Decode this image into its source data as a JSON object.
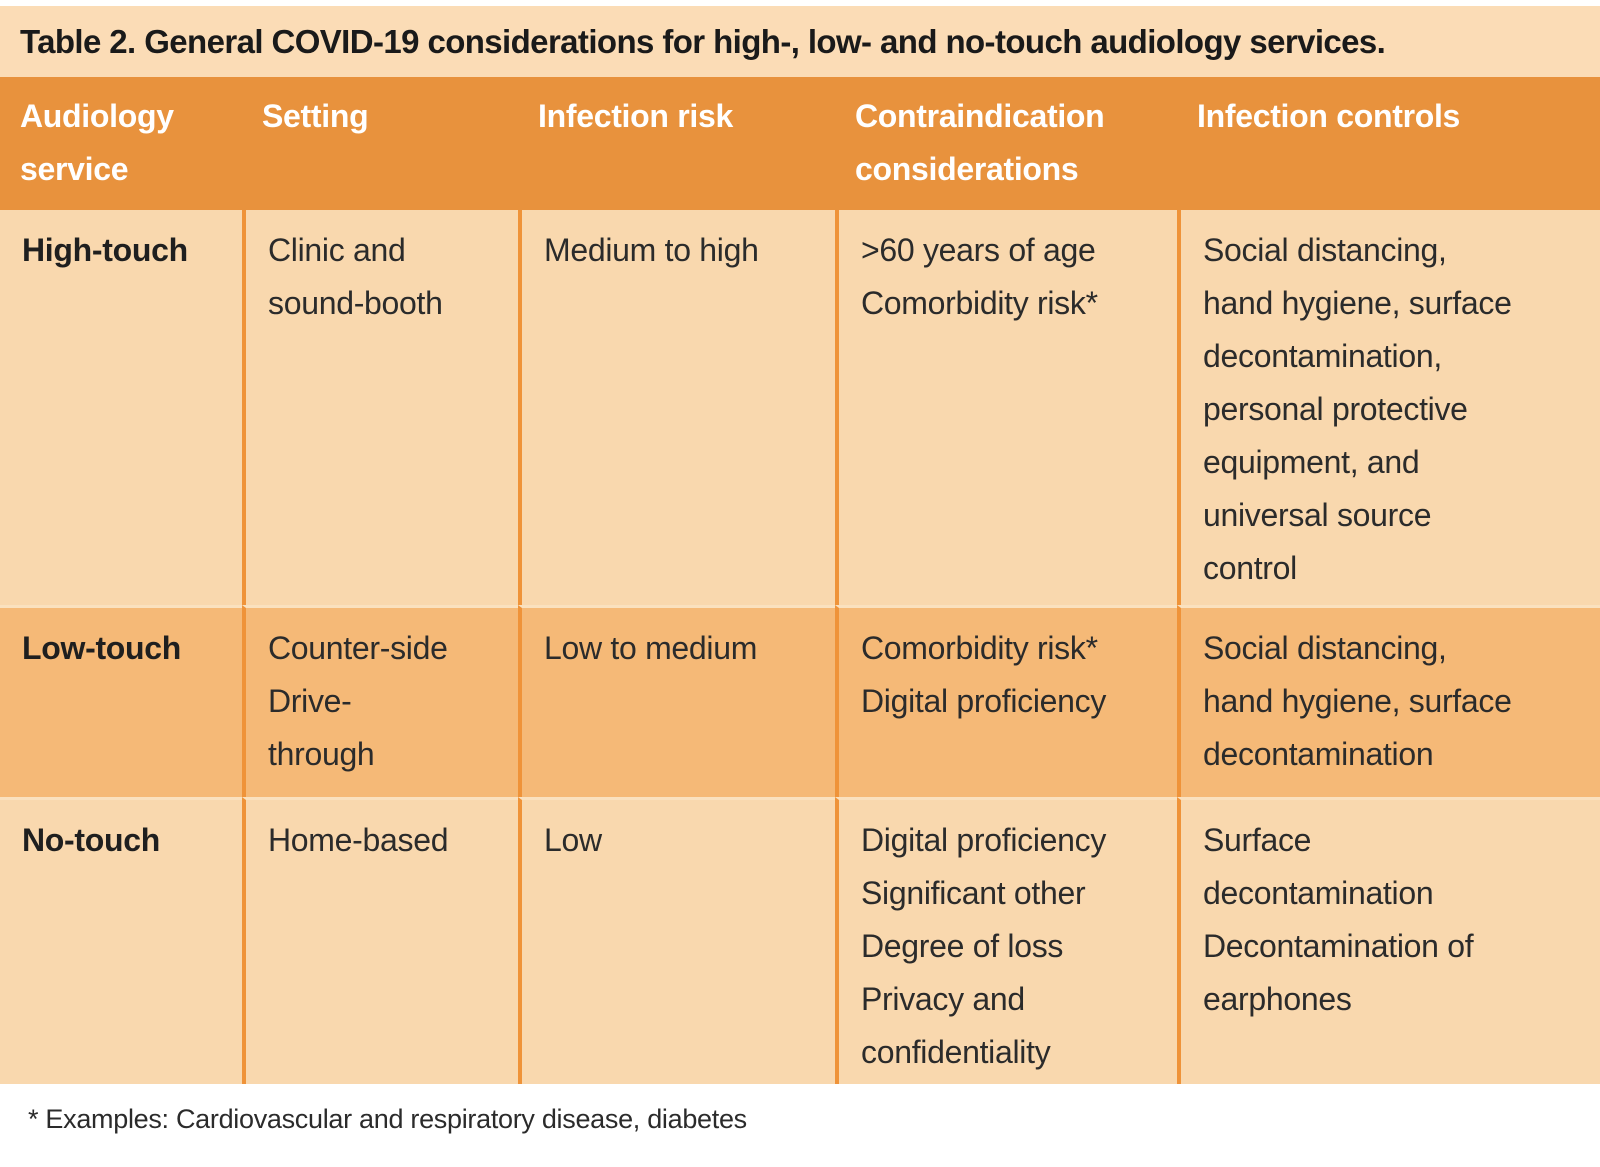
{
  "title": "Table 2. General COVID-19 considerations for high-, low- and no-touch audiology services.",
  "colors": {
    "title_bg": "#FBDCB6",
    "header_bg": "#E8923D",
    "row_light_bg": "#F9D8AE",
    "row_dark_bg": "#F5B977",
    "divider": "#EF9339",
    "row_sep": "#FAE1BF",
    "header_text": "#FFFFFF",
    "body_text": "#2B2B2B",
    "title_text": "#1A1A1A"
  },
  "header": {
    "columns": [
      "Audiology service",
      "Setting",
      "Infection risk",
      "Contraindication considerations",
      "Infection controls"
    ]
  },
  "rows": [
    {
      "service": "High-touch",
      "setting": [
        "Clinic and",
        "sound-booth"
      ],
      "infection_risk": [
        "Medium to high"
      ],
      "contraindications": [
        ">60 years of age",
        "Comorbidity risk*"
      ],
      "infection_controls": [
        "Social distancing,",
        "hand hygiene, surface",
        "decontamination,",
        "personal protective",
        "equipment, and",
        "universal source",
        "control"
      ]
    },
    {
      "service": "Low-touch",
      "setting": [
        "Counter-side",
        "Drive-",
        "through"
      ],
      "infection_risk": [
        "Low to medium"
      ],
      "contraindications": [
        "Comorbidity risk*",
        "Digital proficiency"
      ],
      "infection_controls": [
        "Social distancing,",
        "hand hygiene, surface",
        "decontamination"
      ]
    },
    {
      "service": "No-touch",
      "setting": [
        "Home-based"
      ],
      "infection_risk": [
        "Low"
      ],
      "contraindications": [
        "Digital proficiency",
        "Significant other",
        "Degree of loss",
        "Privacy and",
        "confidentiality"
      ],
      "infection_controls": [
        "Surface",
        "decontamination",
        "Decontamination of",
        "earphones"
      ]
    }
  ],
  "footnote": "* Examples: Cardiovascular and respiratory disease, diabetes"
}
